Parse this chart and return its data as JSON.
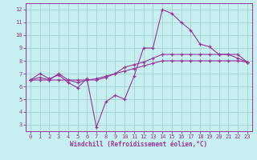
{
  "background_color": "#c8eff0",
  "line_color": "#993399",
  "grid_color": "#99cccc",
  "xlabel": "Windchill (Refroidissement éolien,°C)",
  "xlim": [
    -0.5,
    23.5
  ],
  "ylim": [
    2.5,
    12.5
  ],
  "xticks": [
    0,
    1,
    2,
    3,
    4,
    5,
    6,
    7,
    8,
    9,
    10,
    11,
    12,
    13,
    14,
    15,
    16,
    17,
    18,
    19,
    20,
    21,
    22,
    23
  ],
  "yticks": [
    3,
    4,
    5,
    6,
    7,
    8,
    9,
    10,
    11,
    12
  ],
  "line1": {
    "x": [
      0,
      1,
      2,
      3,
      4,
      5,
      6,
      7,
      8,
      9,
      10,
      11,
      12,
      13,
      14,
      15,
      16,
      17,
      18,
      19,
      20,
      21,
      22,
      23
    ],
    "y": [
      6.5,
      7.0,
      6.6,
      6.9,
      6.3,
      5.9,
      6.6,
      2.8,
      4.8,
      5.3,
      5.0,
      6.8,
      9.0,
      9.0,
      12.0,
      11.7,
      11.0,
      10.4,
      9.3,
      9.1,
      8.5,
      8.5,
      8.2,
      7.9
    ]
  },
  "line2": {
    "x": [
      0,
      1,
      2,
      3,
      4,
      5,
      6,
      7,
      8,
      9,
      10,
      11,
      12,
      13,
      14,
      15,
      16,
      17,
      18,
      19,
      20,
      21,
      22,
      23
    ],
    "y": [
      6.5,
      6.7,
      6.5,
      7.0,
      6.5,
      6.3,
      6.5,
      6.6,
      6.8,
      7.0,
      7.5,
      7.7,
      7.9,
      8.2,
      8.5,
      8.5,
      8.5,
      8.5,
      8.5,
      8.5,
      8.5,
      8.5,
      8.5,
      7.9
    ]
  },
  "line3": {
    "x": [
      0,
      1,
      2,
      3,
      4,
      5,
      6,
      7,
      8,
      9,
      10,
      11,
      12,
      13,
      14,
      15,
      16,
      17,
      18,
      19,
      20,
      21,
      22,
      23
    ],
    "y": [
      6.5,
      6.5,
      6.5,
      6.5,
      6.5,
      6.5,
      6.5,
      6.5,
      6.7,
      7.0,
      7.2,
      7.4,
      7.6,
      7.8,
      8.0,
      8.0,
      8.0,
      8.0,
      8.0,
      8.0,
      8.0,
      8.0,
      8.0,
      7.9
    ]
  },
  "figsize": [
    3.2,
    2.0
  ],
  "dpi": 100,
  "tick_fontsize": 5.0,
  "xlabel_fontsize": 5.5,
  "linewidth": 0.8,
  "markersize": 3.5,
  "markeredgewidth": 0.9
}
